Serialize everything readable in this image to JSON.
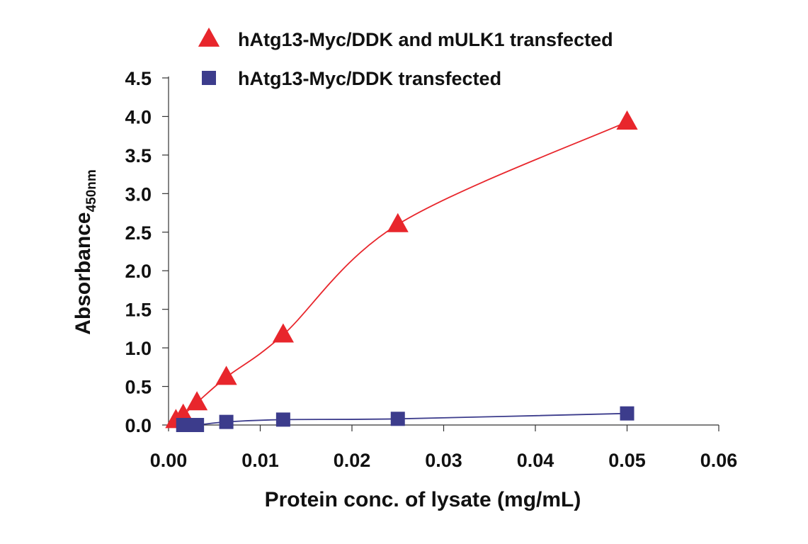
{
  "chart_data": {
    "type": "scatter",
    "title": "",
    "xlabel": "Protein conc. of lysate (mg/mL)",
    "ylabel": "Absorbance",
    "ylabel_subscript": "450nm",
    "xlim": [
      0,
      0.06
    ],
    "ylim": [
      0,
      4.5
    ],
    "xticks": [
      "0.00",
      "0.01",
      "0.02",
      "0.03",
      "0.04",
      "0.05",
      "0.06"
    ],
    "yticks": [
      "0.0",
      "0.5",
      "1.0",
      "1.5",
      "2.0",
      "2.5",
      "3.0",
      "3.5",
      "4.0",
      "4.5"
    ],
    "grid": false,
    "legend_position": "top",
    "series": [
      {
        "name": "hAtg13-Myc/DDK and mULK1 transfected",
        "marker": "triangle",
        "color": "#e8262c",
        "points": [
          {
            "x": 0.0008,
            "y": 0.06
          },
          {
            "x": 0.0016,
            "y": 0.13
          },
          {
            "x": 0.0031,
            "y": 0.29
          },
          {
            "x": 0.0063,
            "y": 0.62
          },
          {
            "x": 0.0125,
            "y": 1.17
          },
          {
            "x": 0.025,
            "y": 2.6
          },
          {
            "x": 0.05,
            "y": 3.93
          }
        ]
      },
      {
        "name": "hAtg13-Myc/DDK transfected",
        "marker": "square",
        "color": "#3c3c8c",
        "points": [
          {
            "x": 0.0016,
            "y": 0.0
          },
          {
            "x": 0.0031,
            "y": 0.0
          },
          {
            "x": 0.0063,
            "y": 0.04
          },
          {
            "x": 0.0125,
            "y": 0.07
          },
          {
            "x": 0.025,
            "y": 0.08
          },
          {
            "x": 0.05,
            "y": 0.15
          }
        ]
      }
    ]
  }
}
